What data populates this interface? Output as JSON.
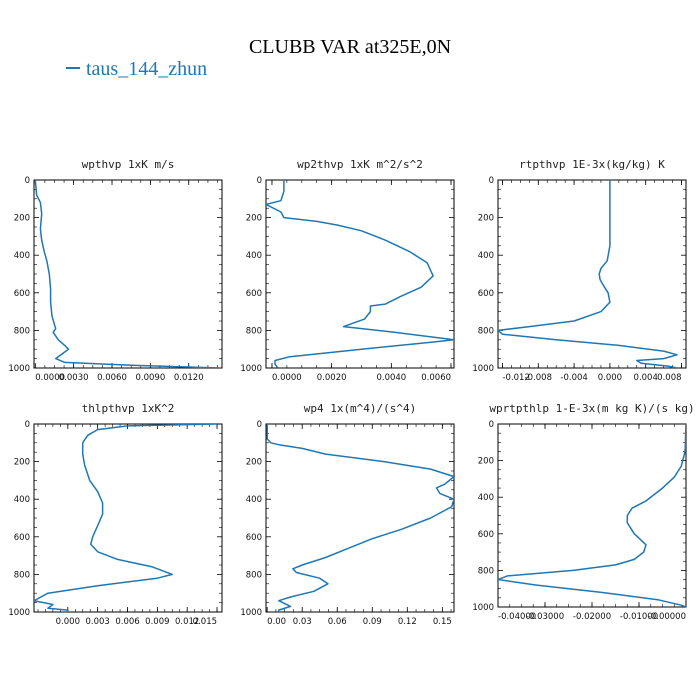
{
  "title": "CLUBB VAR at325E,0N",
  "legend": {
    "label": "taus_144_zhun",
    "color": "#1f77b4"
  },
  "chart_data": [
    {
      "type": "line",
      "title": "wpthvp   1xK m/s",
      "xlim": [
        -0.0001,
        0.0146
      ],
      "ylim": [
        0,
        1000
      ],
      "xticks": [
        0.0,
        0.003,
        0.006,
        0.009,
        0.012
      ],
      "xticklabels": [
        "0.0000",
        "0.0030",
        "0.0060",
        "0.0090",
        "0.0120"
      ],
      "yticks": [
        0,
        200,
        400,
        600,
        800,
        1000
      ],
      "yticklabels": [
        "0",
        "200",
        "400",
        "600",
        "800",
        "1000"
      ],
      "series": [
        {
          "x": [
            0.0,
            0.0001,
            0.0004,
            0.0005,
            0.0004,
            0.0005,
            0.0007,
            0.0009,
            0.0011,
            0.0012,
            0.0012,
            0.0013,
            0.0015,
            0.0016,
            0.0014,
            0.0018,
            0.0023,
            0.0026,
            0.0022,
            0.0016,
            0.0023,
            0.0075,
            0.0145
          ],
          "y": [
            0,
            80,
            120,
            180,
            260,
            320,
            380,
            430,
            500,
            580,
            650,
            720,
            770,
            790,
            810,
            850,
            880,
            900,
            920,
            950,
            970,
            985,
            1000
          ]
        }
      ]
    },
    {
      "type": "line",
      "title": "wp2thvp   1xK m^2/s^2",
      "xlim": [
        -0.0002,
        0.0061
      ],
      "ylim": [
        0,
        1000
      ],
      "xticks": [
        0.0,
        0.002,
        0.004,
        0.006
      ],
      "xticklabels": [
        "0.0000",
        "0.0020",
        "0.0040",
        "0.0060"
      ],
      "yticks": [
        0,
        200,
        400,
        600,
        800,
        1000
      ],
      "yticklabels": [
        "0",
        "200",
        "400",
        "600",
        "800",
        "1000"
      ],
      "series": [
        {
          "x": [
            0.0004,
            0.0004,
            0.0003,
            -0.0002,
            0.0003,
            0.0004,
            0.0015,
            0.0022,
            0.003,
            0.0038,
            0.0046,
            0.0052,
            0.0054,
            0.005,
            0.0043,
            0.0038,
            0.0033,
            0.0033,
            0.0031,
            0.0024,
            0.0041,
            0.0061,
            0.0055,
            0.003,
            0.0006,
            0.0001,
            0.0001,
            0.0002
          ],
          "y": [
            0,
            60,
            110,
            130,
            170,
            200,
            220,
            240,
            270,
            320,
            380,
            440,
            510,
            570,
            620,
            660,
            670,
            700,
            740,
            780,
            810,
            850,
            860,
            900,
            940,
            960,
            980,
            1000
          ]
        }
      ]
    },
    {
      "type": "line",
      "title": "rtpthvp   1E-3x(kg/kg) K",
      "xlim": [
        -0.0125,
        0.0085
      ],
      "ylim": [
        0,
        1000
      ],
      "xticks": [
        -0.012,
        -0.008,
        -0.004,
        0.0,
        0.004,
        0.008
      ],
      "xticklabels": [
        "-0.012",
        "-0.008",
        "-0.004",
        "0.000",
        "0.004",
        "0.008"
      ],
      "yticks": [
        0,
        200,
        400,
        600,
        800,
        1000
      ],
      "yticklabels": [
        "0",
        "200",
        "400",
        "600",
        "800",
        "1000"
      ],
      "series": [
        {
          "x": [
            0.0,
            0.0,
            0.0,
            -0.0003,
            -0.001,
            -0.0012,
            -0.0011,
            -0.0006,
            -0.0002,
            0.0,
            -0.001,
            -0.004,
            -0.009,
            -0.0125,
            -0.012,
            -0.006,
            0.001,
            0.006,
            0.0075,
            0.006,
            0.003,
            0.0035,
            0.0065,
            0.0075
          ],
          "y": [
            0,
            200,
            350,
            430,
            470,
            500,
            530,
            570,
            600,
            650,
            700,
            750,
            780,
            800,
            820,
            850,
            880,
            910,
            930,
            950,
            960,
            975,
            990,
            1000
          ]
        }
      ]
    },
    {
      "type": "line",
      "title": "thlpthvp   1xK^2",
      "xlim": [
        -0.0034,
        0.0155
      ],
      "ylim": [
        0,
        1000
      ],
      "xticks": [
        0.0,
        0.003,
        0.006,
        0.009,
        0.012,
        0.015
      ],
      "xticklabels": [
        "0.000",
        "0.003",
        "0.006",
        "0.009",
        "0.012",
        "0.015"
      ],
      "yticks": [
        0,
        200,
        400,
        600,
        800,
        1000
      ],
      "yticklabels": [
        "0",
        "200",
        "400",
        "600",
        "800",
        "1000"
      ],
      "series": [
        {
          "x": [
            0.015,
            0.006,
            0.003,
            0.002,
            0.0015,
            0.0015,
            0.0017,
            0.0022,
            0.003,
            0.0035,
            0.0035,
            0.003,
            0.0025,
            0.0023,
            0.003,
            0.005,
            0.0085,
            0.0105,
            0.009,
            0.003,
            -0.002,
            -0.0034,
            -0.0015,
            -0.002,
            0.0,
            0.0
          ],
          "y": [
            0,
            10,
            30,
            60,
            100,
            160,
            220,
            300,
            360,
            420,
            480,
            540,
            600,
            640,
            680,
            720,
            760,
            800,
            820,
            860,
            900,
            940,
            960,
            980,
            990,
            1000
          ]
        }
      ]
    },
    {
      "type": "line",
      "title": "wp4   1x(m^4)/(s^4)",
      "xlim": [
        -0.001,
        0.16
      ],
      "ylim": [
        0,
        1000
      ],
      "xticks": [
        0.0,
        0.03,
        0.06,
        0.09,
        0.12,
        0.15
      ],
      "xticklabels": [
        "0.00",
        "0.03",
        "0.06",
        "0.09",
        "0.12",
        "0.15"
      ],
      "yticks": [
        0,
        200,
        400,
        600,
        800,
        1000
      ],
      "yticklabels": [
        "0",
        "200",
        "400",
        "600",
        "800",
        "1000"
      ],
      "series": [
        {
          "x": [
            0.0,
            0.0,
            0.003,
            0.01,
            0.03,
            0.05,
            0.1,
            0.14,
            0.16,
            0.152,
            0.145,
            0.148,
            0.16,
            0.158,
            0.14,
            0.115,
            0.09,
            0.07,
            0.05,
            0.03,
            0.022,
            0.025,
            0.045,
            0.052,
            0.04,
            0.02,
            0.01,
            0.02,
            0.01,
            0.01
          ],
          "y": [
            0,
            80,
            100,
            110,
            130,
            160,
            200,
            240,
            280,
            320,
            340,
            370,
            400,
            440,
            500,
            560,
            610,
            660,
            710,
            750,
            770,
            790,
            820,
            850,
            890,
            920,
            940,
            970,
            990,
            1000
          ]
        }
      ]
    },
    {
      "type": "line",
      "title": "wprtpthlp   1-E-3x(m kg K)/(s kg)",
      "xlim": [
        -0.04,
        0.0
      ],
      "ylim": [
        0,
        1000
      ],
      "xticks": [
        -0.04,
        -0.03,
        -0.02,
        -0.01,
        0.0
      ],
      "xticklabels": [
        "-0.04000",
        "-0.03000",
        "-0.02000",
        "-0.01000",
        "-0.00000"
      ],
      "yticks": [
        0,
        200,
        400,
        600,
        800,
        1000
      ],
      "yticklabels": [
        "0",
        "200",
        "400",
        "600",
        "800",
        "1000"
      ],
      "series": [
        {
          "x": [
            0.0,
            -0.0002,
            -0.001,
            -0.0025,
            -0.005,
            -0.0085,
            -0.0115,
            -0.0125,
            -0.0125,
            -0.011,
            -0.0085,
            -0.009,
            -0.011,
            -0.015,
            -0.024,
            -0.038,
            -0.04,
            -0.032,
            -0.018,
            -0.006,
            -0.001,
            0.0
          ],
          "y": [
            0,
            150,
            230,
            290,
            350,
            420,
            460,
            500,
            540,
            600,
            660,
            700,
            740,
            770,
            800,
            830,
            850,
            880,
            920,
            960,
            990,
            1000
          ]
        }
      ]
    }
  ]
}
